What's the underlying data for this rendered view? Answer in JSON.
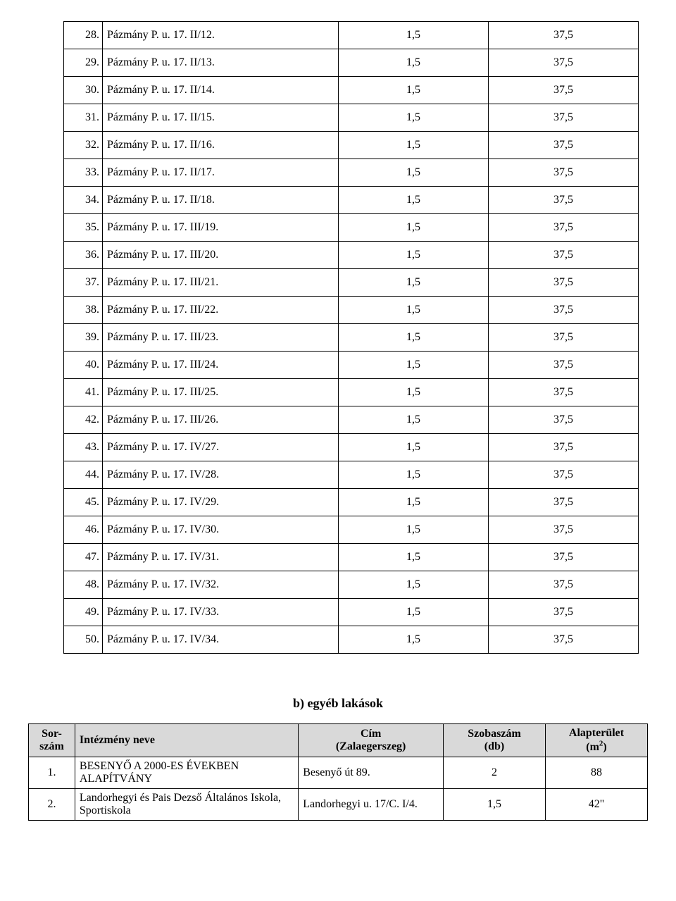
{
  "table1": {
    "rows": [
      {
        "n": "28.",
        "name": "Pázmány P. u. 17. II/12.",
        "v1": "1,5",
        "v2": "37,5"
      },
      {
        "n": "29.",
        "name": "Pázmány P. u. 17. II/13.",
        "v1": "1,5",
        "v2": "37,5"
      },
      {
        "n": "30.",
        "name": "Pázmány P. u. 17. II/14.",
        "v1": "1,5",
        "v2": "37,5"
      },
      {
        "n": "31.",
        "name": "Pázmány P. u. 17. II/15.",
        "v1": "1,5",
        "v2": "37,5"
      },
      {
        "n": "32.",
        "name": "Pázmány P. u. 17. II/16.",
        "v1": "1,5",
        "v2": "37,5"
      },
      {
        "n": "33.",
        "name": "Pázmány P. u. 17. II/17.",
        "v1": "1,5",
        "v2": "37,5"
      },
      {
        "n": "34.",
        "name": "Pázmány P. u. 17. II/18.",
        "v1": "1,5",
        "v2": "37,5"
      },
      {
        "n": "35.",
        "name": "Pázmány P. u. 17. III/19.",
        "v1": "1,5",
        "v2": "37,5"
      },
      {
        "n": "36.",
        "name": "Pázmány P. u. 17. III/20.",
        "v1": "1,5",
        "v2": "37,5"
      },
      {
        "n": "37.",
        "name": "Pázmány P. u. 17. III/21.",
        "v1": "1,5",
        "v2": "37,5"
      },
      {
        "n": "38.",
        "name": "Pázmány P. u. 17. III/22.",
        "v1": "1,5",
        "v2": "37,5"
      },
      {
        "n": "39.",
        "name": "Pázmány P. u. 17. III/23.",
        "v1": "1,5",
        "v2": "37,5"
      },
      {
        "n": "40.",
        "name": "Pázmány P. u. 17. III/24.",
        "v1": "1,5",
        "v2": "37,5"
      },
      {
        "n": "41.",
        "name": "Pázmány P. u. 17. III/25.",
        "v1": "1,5",
        "v2": "37,5"
      },
      {
        "n": "42.",
        "name": "Pázmány P. u. 17. III/26.",
        "v1": "1,5",
        "v2": "37,5"
      },
      {
        "n": "43.",
        "name": "Pázmány P. u. 17. IV/27.",
        "v1": "1,5",
        "v2": "37,5"
      },
      {
        "n": "44.",
        "name": "Pázmány P. u. 17. IV/28.",
        "v1": "1,5",
        "v2": "37,5"
      },
      {
        "n": "45.",
        "name": "Pázmány P. u. 17. IV/29.",
        "v1": "1,5",
        "v2": "37,5"
      },
      {
        "n": "46.",
        "name": "Pázmány P. u. 17. IV/30.",
        "v1": "1,5",
        "v2": "37,5"
      },
      {
        "n": "47.",
        "name": "Pázmány P. u. 17. IV/31.",
        "v1": "1,5",
        "v2": "37,5"
      },
      {
        "n": "48.",
        "name": "Pázmány P. u. 17. IV/32.",
        "v1": "1,5",
        "v2": "37,5"
      },
      {
        "n": "49.",
        "name": "Pázmány P. u. 17. IV/33.",
        "v1": "1,5",
        "v2": "37,5"
      },
      {
        "n": "50.",
        "name": "Pázmány P. u. 17. IV/34.",
        "v1": "1,5",
        "v2": "37,5"
      }
    ]
  },
  "section_b_title": "b) egyéb lakások",
  "table2": {
    "headers": {
      "sor_l1": "Sor-",
      "sor_l2": "szám",
      "int": "Intézmény neve",
      "cim_l1": "Cím",
      "cim_l2": "(Zalaegerszeg)",
      "szob_l1": "Szobaszám",
      "szob_l2": "(db)",
      "alap_l1": "Alapterület",
      "alap_l2_pre": "(m",
      "alap_l2_sup": "2",
      "alap_l2_post": ")"
    },
    "rows": [
      {
        "sor": "1.",
        "int": "BESENYŐ A 2000-ES ÉVEKBEN ALAPÍTVÁNY",
        "cim": "Besenyő út 89.",
        "szob": "2",
        "alap": "88"
      },
      {
        "sor": "2.",
        "int": "Landorhegyi és Pais Dezső Általános Iskola, Sportiskola",
        "cim": "Landorhegyi u. 17/C. I/4.",
        "szob": "1,5",
        "alap": "42\""
      }
    ]
  }
}
